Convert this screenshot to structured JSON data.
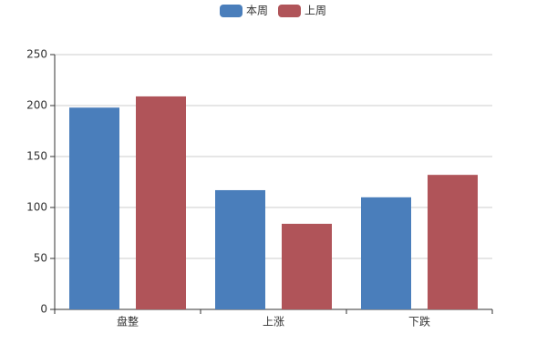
{
  "chart_data": {
    "type": "bar",
    "categories": [
      "盘整",
      "上涨",
      "下跌"
    ],
    "series": [
      {
        "name": "本周",
        "color": "#4a7ebb",
        "values": [
          198,
          117,
          110
        ]
      },
      {
        "name": "上周",
        "color": "#b05459",
        "values": [
          209,
          84,
          132
        ]
      }
    ],
    "ylim": [
      0,
      250
    ],
    "yticks": [
      0,
      50,
      100,
      150,
      200,
      250
    ],
    "grid": true,
    "legend": "top"
  }
}
